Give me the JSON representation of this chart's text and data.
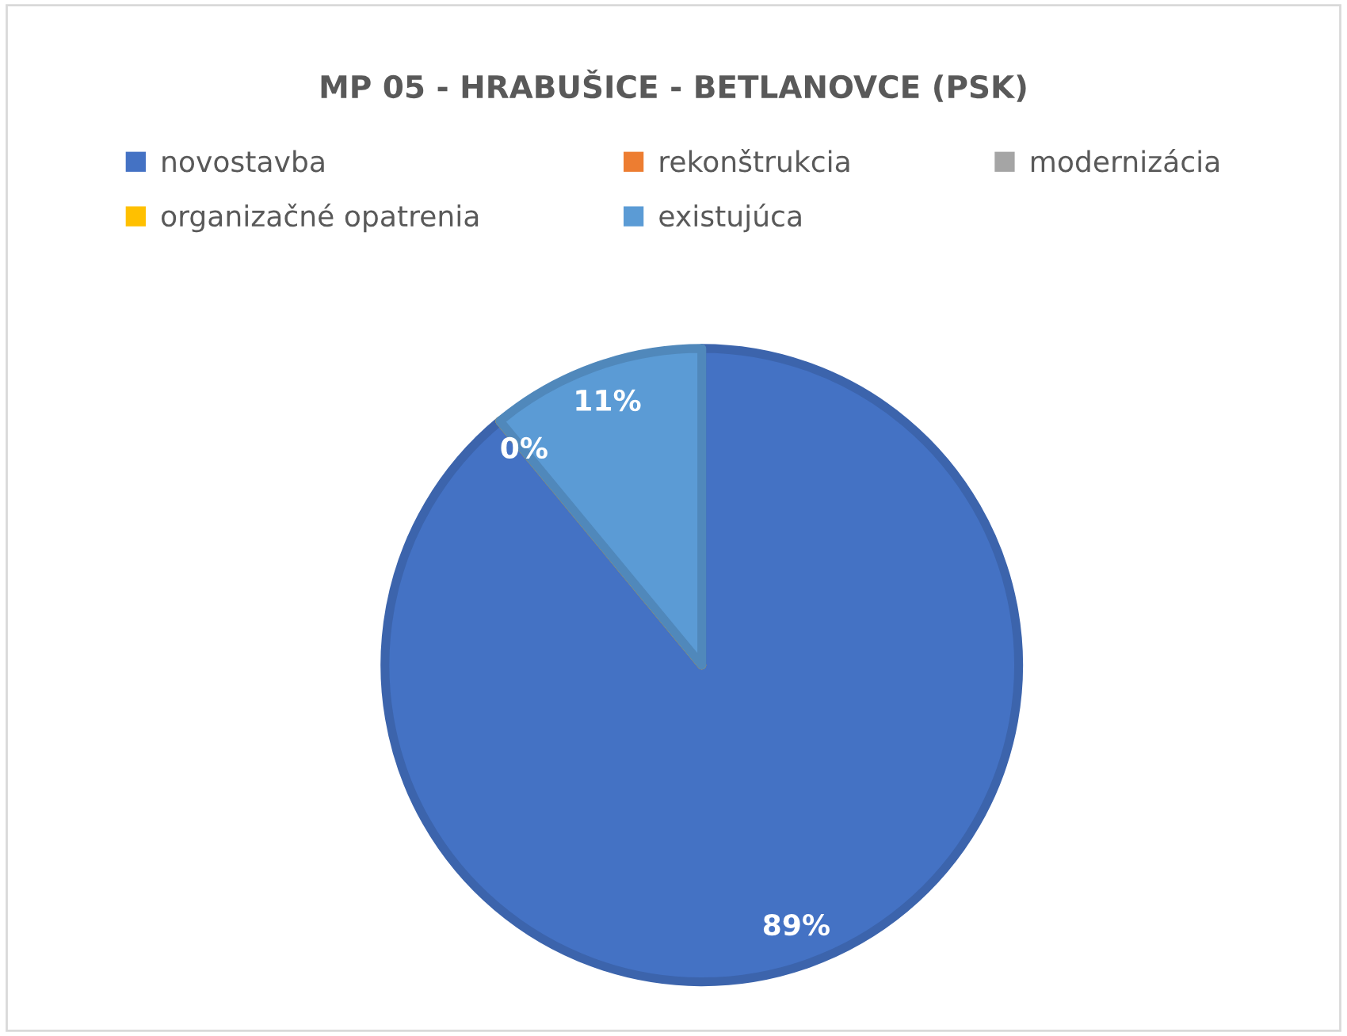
{
  "chart_data": {
    "type": "pie",
    "title": "MP 05 - HRABUŠICE - BETLANOVCE (PSK)",
    "categories": [
      "novostavba",
      "rekonštrukcia",
      "modernizácia",
      "organizačné opatrenia",
      "existujúca"
    ],
    "values": [
      89,
      0,
      0,
      0,
      11
    ],
    "colors": [
      "#4472c4",
      "#ed7d31",
      "#a5a5a5",
      "#ffc000",
      "#5b9bd5"
    ],
    "value_labels": [
      "89%",
      "0%",
      null,
      null,
      "11%"
    ],
    "legend": "top"
  }
}
